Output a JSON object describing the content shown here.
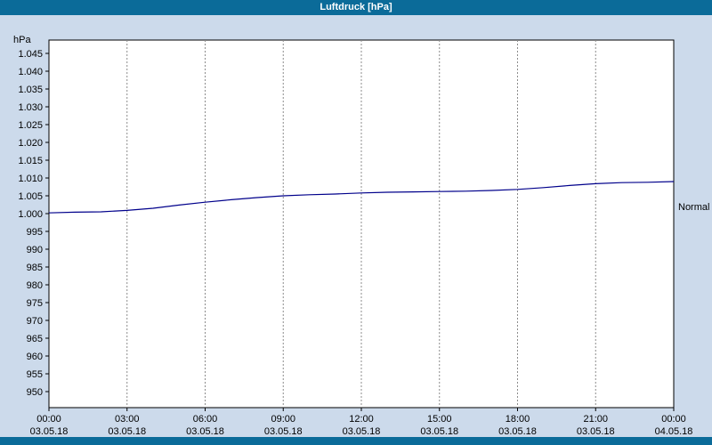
{
  "window": {
    "title": "Luftdruck [hPa]"
  },
  "colors": {
    "title_bar": "#0b6b99",
    "title_text": "#ffffff",
    "background": "#ccdaeb",
    "plot_bg": "#ffffff",
    "plot_border": "#000000",
    "grid": "#8c8c8c",
    "line": "#00008b",
    "text": "#000000"
  },
  "chart_data": {
    "type": "line",
    "title": "Luftdruck [hPa]",
    "xlabel": "",
    "ylabel": "hPa",
    "ylim": [
      947.5,
      1047.5
    ],
    "xlim_hours": [
      0,
      24
    ],
    "grid": "vertical-dashed",
    "legend_position": "none",
    "y_ticks": [
      1045,
      1040,
      1035,
      1030,
      1025,
      1020,
      1015,
      1010,
      1005,
      1000,
      995,
      990,
      985,
      980,
      975,
      970,
      965,
      960,
      955,
      950
    ],
    "y_tick_labels": [
      "1.045",
      "1.040",
      "1.035",
      "1.030",
      "1.025",
      "1.020",
      "1.015",
      "1.010",
      "1.005",
      "1.000",
      "995",
      "990",
      "985",
      "980",
      "975",
      "970",
      "965",
      "960",
      "955",
      "950"
    ],
    "x_ticks": [
      0,
      3,
      6,
      9,
      12,
      15,
      18,
      21,
      24
    ],
    "x_tick_times": [
      "00:00",
      "03:00",
      "06:00",
      "09:00",
      "12:00",
      "15:00",
      "18:00",
      "21:00",
      "00:00"
    ],
    "x_tick_dates": [
      "03.05.18",
      "03.05.18",
      "03.05.18",
      "03.05.18",
      "03.05.18",
      "03.05.18",
      "03.05.18",
      "03.05.18",
      "04.05.18"
    ],
    "series": [
      {
        "name": "Luftdruck",
        "color": "#00008b",
        "x": [
          0,
          1,
          2,
          3,
          4,
          5,
          6,
          7,
          8,
          9,
          10,
          11,
          12,
          13,
          14,
          15,
          16,
          17,
          18,
          19,
          20,
          21,
          22,
          23,
          24
        ],
        "values": [
          1000.2,
          1000.4,
          1000.5,
          1000.9,
          1001.5,
          1002.4,
          1003.2,
          1003.9,
          1004.5,
          1005.0,
          1005.3,
          1005.5,
          1005.8,
          1006.0,
          1006.1,
          1006.2,
          1006.3,
          1006.5,
          1006.8,
          1007.3,
          1007.9,
          1008.4,
          1008.7,
          1008.8,
          1009.0
        ]
      }
    ],
    "annotations": [
      {
        "label": "Normal",
        "value": 1002,
        "side": "right"
      }
    ]
  }
}
